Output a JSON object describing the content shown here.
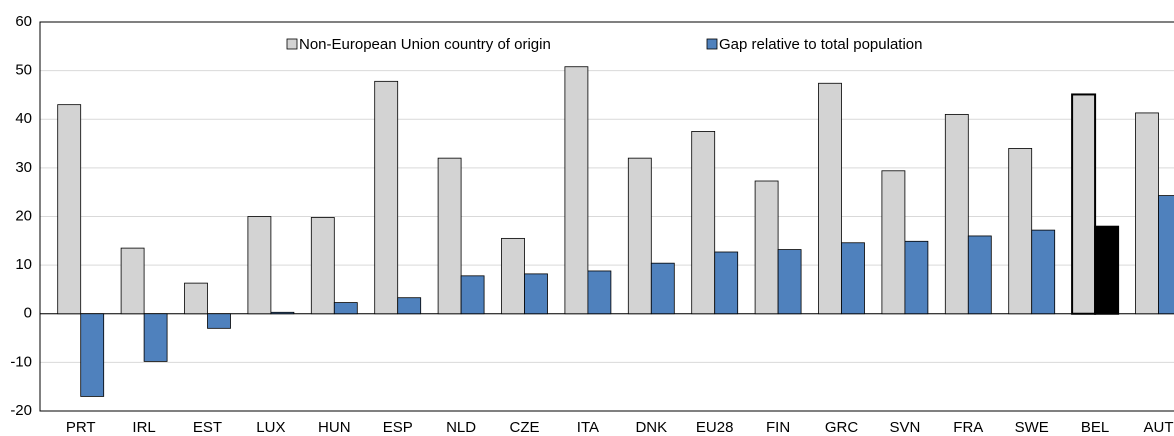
{
  "chart_data": {
    "type": "bar",
    "categories": [
      "PRT",
      "IRL",
      "EST",
      "LUX",
      "HUN",
      "ESP",
      "NLD",
      "CZE",
      "ITA",
      "DNK",
      "EU28",
      "FIN",
      "GRC",
      "SVN",
      "FRA",
      "SWE",
      "BEL",
      "AUT"
    ],
    "series": [
      {
        "name": "Non-European Union country of origin",
        "color": "#d3d3d3",
        "values": [
          43,
          13.5,
          6.3,
          20,
          19.8,
          47.8,
          32,
          15.5,
          50.8,
          32,
          37.5,
          27.3,
          47.4,
          29.4,
          41,
          34,
          45.1,
          41.3
        ]
      },
      {
        "name": "Gap relative to total population",
        "color": "#4f81bd",
        "values": [
          -17,
          -9.8,
          -3,
          0.3,
          2.3,
          3.3,
          7.8,
          8.2,
          8.8,
          10.4,
          12.7,
          13.2,
          14.6,
          14.9,
          16,
          17.2,
          17.9,
          24.3
        ]
      }
    ],
    "highlight_index": 16,
    "highlight_color": "#000000",
    "ylim": [
      -20,
      60
    ],
    "yticks": [
      -20,
      -10,
      0,
      10,
      20,
      30,
      40,
      50,
      60
    ],
    "grid": true
  }
}
